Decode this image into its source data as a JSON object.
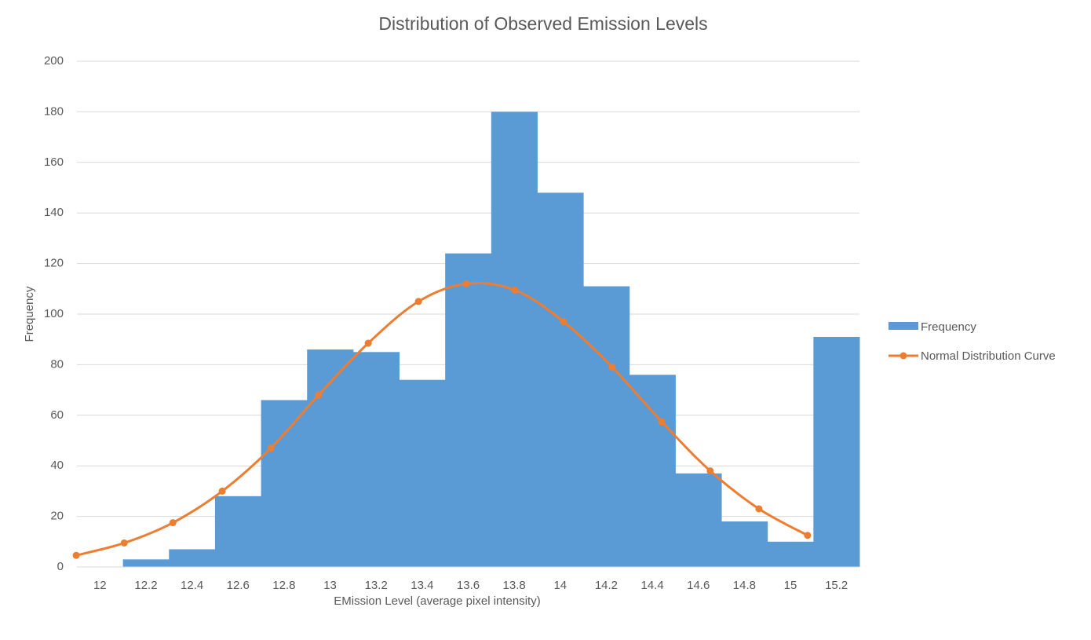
{
  "chart_data": {
    "type": "bar",
    "title": "Distribution of Observed Emission Levels",
    "x_label": "EMission Level (average pixel intensity)",
    "y_label": "Frequency",
    "categories": [
      "12",
      "12.2",
      "12.4",
      "12.6",
      "12.8",
      "13",
      "13.2",
      "13.4",
      "13.6",
      "13.8",
      "14",
      "14.2",
      "14.4",
      "14.6",
      "14.8",
      "15",
      "15.2"
    ],
    "ylim": [
      0,
      200
    ],
    "yticks": [
      0,
      20,
      40,
      60,
      80,
      100,
      120,
      140,
      160,
      180,
      200
    ],
    "grid": true,
    "legend": "right",
    "bar_series": {
      "name": "Frequency",
      "color": "#5b9bd5",
      "values": [
        0,
        3,
        7,
        28,
        66,
        86,
        85,
        74,
        124,
        180,
        148,
        111,
        76,
        37,
        18,
        10,
        91
      ]
    },
    "line_series": {
      "name": "Normal Distribution Curve",
      "color": "#ed7d31",
      "type": "line",
      "xlim": [
        11.897,
        15.306
      ],
      "x": [
        11.894,
        12.103,
        12.315,
        12.53,
        12.742,
        12.95,
        13.166,
        13.385,
        13.593,
        13.805,
        14.017,
        14.229,
        14.444,
        14.656,
        14.868,
        15.08
      ],
      "values": [
        4.6,
        9.5,
        17.5,
        30,
        47,
        68,
        88.5,
        105,
        112,
        109.5,
        97,
        79,
        57.5,
        38,
        23,
        12.5
      ]
    }
  }
}
